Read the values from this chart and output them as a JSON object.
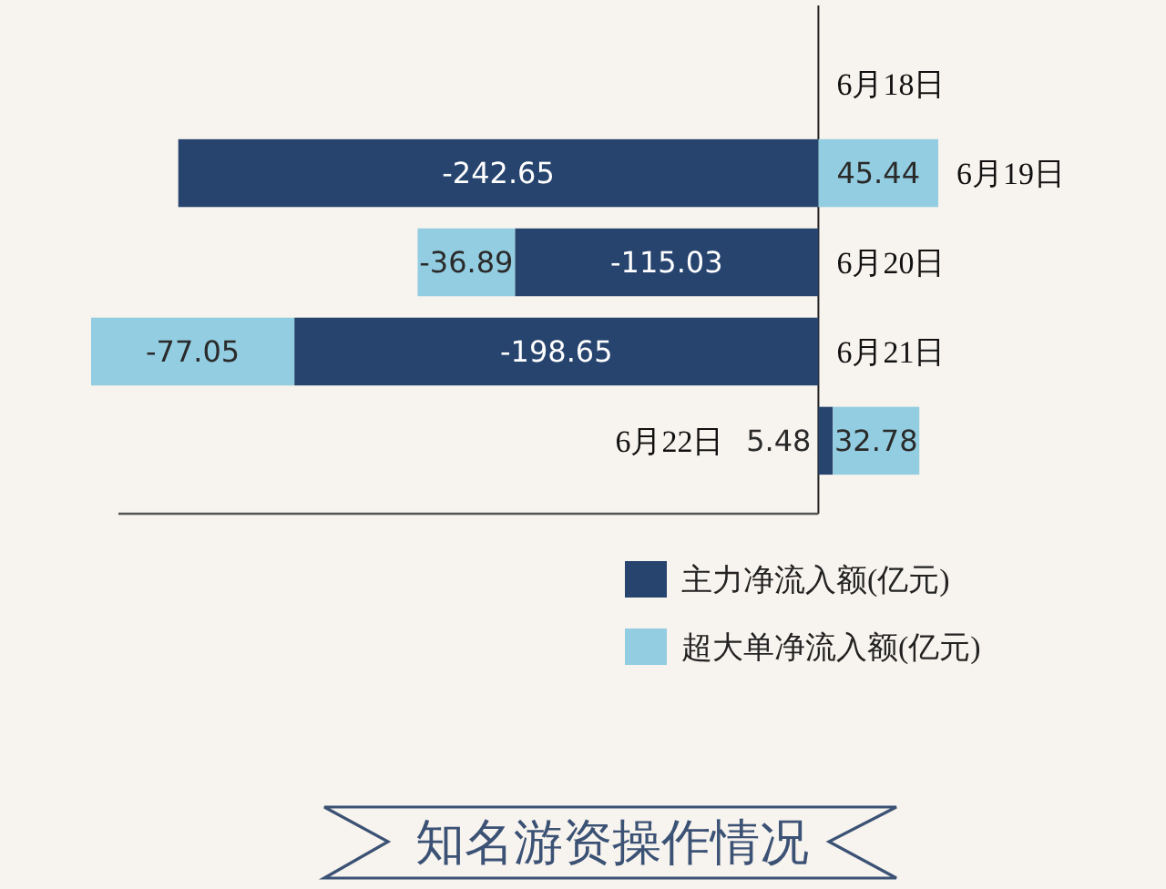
{
  "chart_data": {
    "type": "bar",
    "orientation": "horizontal",
    "stacked": true,
    "title": "知名游资操作情况",
    "categories": [
      "6月18日",
      "6月19日",
      "6月20日",
      "6月21日",
      "6月22日"
    ],
    "series": [
      {
        "name": "主力净流入额(亿元)",
        "color": "#27446f",
        "values": [
          null,
          -242.65,
          -115.03,
          -198.65,
          5.48
        ]
      },
      {
        "name": "超大单净流入额(亿元)",
        "color": "#93cde1",
        "values": [
          null,
          45.44,
          -36.89,
          -77.05,
          32.78
        ]
      }
    ],
    "data_labels": true,
    "legend": "bottom right"
  }
}
